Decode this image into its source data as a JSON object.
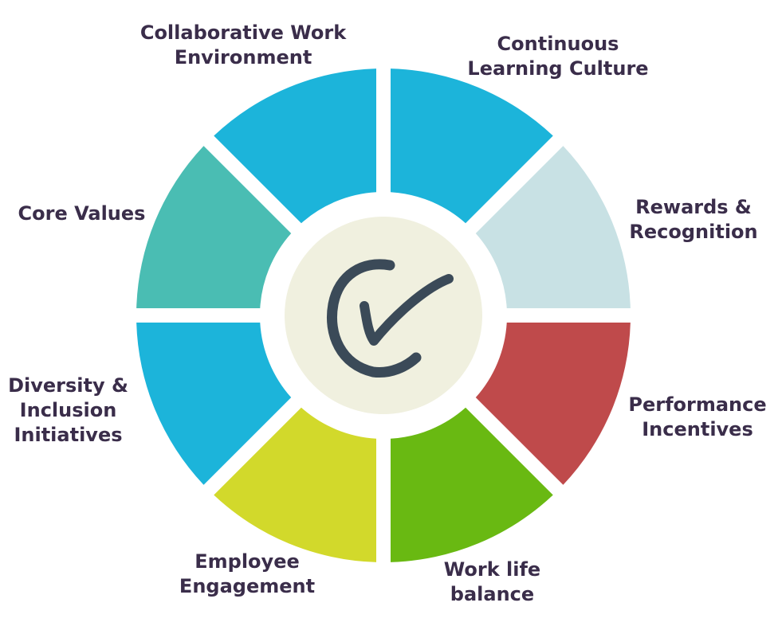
{
  "segments": [
    {
      "id": "continuous-learning",
      "lines": [
        "Continuous",
        "Learning Culture"
      ],
      "color": "#1cb4da"
    },
    {
      "id": "rewards-recognition",
      "lines": [
        "Rewards &",
        "Recognition"
      ],
      "color": "#c8e1e4"
    },
    {
      "id": "performance-incentives",
      "lines": [
        "Performance",
        "Incentives"
      ],
      "color": "#bf4a4b"
    },
    {
      "id": "work-life-balance",
      "lines": [
        "Work life",
        "balance"
      ],
      "color": "#69b912"
    },
    {
      "id": "employee-engagement",
      "lines": [
        "Employee",
        "Engagement"
      ],
      "color": "#d2d92b"
    },
    {
      "id": "diversity-inclusion",
      "lines": [
        "Diversity &",
        "Inclusion",
        "Initiatives"
      ],
      "color": "#1cb4da"
    },
    {
      "id": "core-values",
      "lines": [
        "Core Values"
      ],
      "color": "#4abdb3"
    },
    {
      "id": "collaborative-work",
      "lines": [
        "Collaborative Work",
        "Environment"
      ],
      "color": "#1cb4da"
    }
  ],
  "center": {
    "icon": "checkmark-icon",
    "fill": "#f0f0df",
    "stroke": "#3b4a58"
  },
  "text_color": "#3a2d4a"
}
